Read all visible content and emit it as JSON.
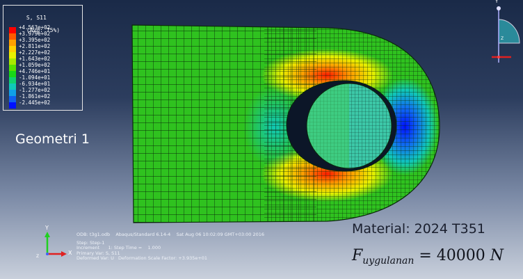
{
  "legend": {
    "title_line1": "S, S11",
    "title_line2": "(Avg: 75%)",
    "values": [
      "+4.563e+02",
      "+3.979e+02",
      "+3.395e+02",
      "+2.811e+02",
      "+2.227e+02",
      "+1.643e+02",
      "+1.059e+02",
      "+4.746e+01",
      "-1.094e+01",
      "-6.934e+01",
      "-1.277e+02",
      "-1.861e+02",
      "-2.445e+02"
    ],
    "colors": [
      "#ff0000",
      "#ff5a00",
      "#ffa000",
      "#ffd000",
      "#e8f000",
      "#a8e800",
      "#58e000",
      "#18d818",
      "#10d070",
      "#10c8b8",
      "#10a0e8",
      "#1060f0",
      "#0010ff"
    ]
  },
  "geometry_label": "Geometri 1",
  "info": {
    "odb_line": "ODB: t3g1.odb    Abaqus/Standard 6.14-4    Sat Aug 06 10:02:09 GMT+03:00 2016",
    "step_line": "Step: Step-1",
    "increment_line": "Increment      1: Step Time =    1.000",
    "primary_var_line": "Primary Var: S, S11",
    "deformed_var_line": "Deformed Var: U   Deformation Scale Factor: +3.935e+01"
  },
  "material_label": "Material: 2024 T351",
  "force": {
    "symbol": "F",
    "subscript": "uygulanan",
    "equals": "= 40000",
    "unit": "N"
  },
  "triad_bottom": {
    "y_label": "Y",
    "x_label": "X",
    "z_label": "Z"
  },
  "triad_top": {
    "y_label": "Y",
    "z_label": "Z"
  },
  "colors": {
    "mesh_green": "#2fc21f",
    "mesh_line": "#0a2a0a",
    "pin_teal": "#3cc8a8",
    "hole_dark": "#0c1628"
  }
}
